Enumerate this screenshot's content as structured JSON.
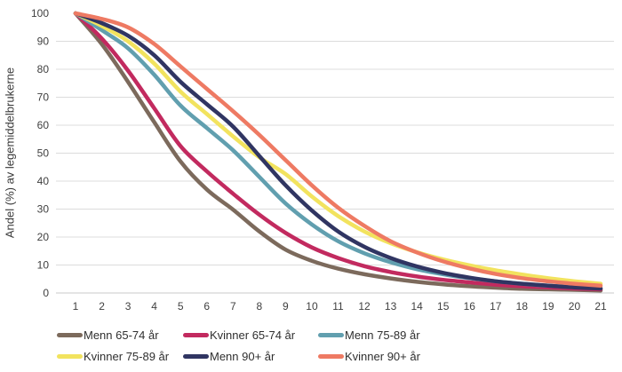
{
  "chart_data": {
    "type": "line",
    "title": "",
    "xlabel": "",
    "ylabel": "Andel (%) av legemiddelbrukerne",
    "x": [
      1,
      2,
      3,
      4,
      5,
      6,
      7,
      8,
      9,
      10,
      11,
      12,
      13,
      14,
      15,
      16,
      17,
      18,
      19,
      20,
      21
    ],
    "ylim": [
      0,
      100
    ],
    "yticks": [
      0,
      10,
      20,
      30,
      40,
      50,
      60,
      70,
      80,
      90,
      100
    ],
    "grid": "horizontal-only",
    "gridline_color": "#dcdcdc",
    "axis_line_color": "#c8c8c8",
    "legend_position": "bottom",
    "series": [
      {
        "name": "Menn 65-74 år",
        "color": "#7C6A5C",
        "values": [
          100,
          89,
          75.5,
          61,
          47,
          37,
          29.8,
          22,
          15.5,
          11.5,
          8.7,
          6.7,
          5.2,
          4.0,
          3.1,
          2.4,
          1.9,
          1.5,
          1.3,
          1.1,
          0.9
        ]
      },
      {
        "name": "Kvinner 65-74 år",
        "color": "#C22A5F",
        "values": [
          100,
          91,
          79.5,
          66,
          52.5,
          43.5,
          35.5,
          28,
          21.5,
          16.3,
          12.5,
          9.6,
          7.5,
          5.9,
          4.7,
          3.8,
          3.0,
          2.4,
          2.0,
          1.6,
          1.3
        ]
      },
      {
        "name": "Menn 75-89 år",
        "color": "#619FAF",
        "values": [
          100,
          94,
          87.5,
          78,
          67,
          59,
          51,
          41.5,
          32,
          24.5,
          18.5,
          14.2,
          11,
          8.5,
          6.7,
          5.3,
          4.2,
          3.3,
          2.6,
          2.1,
          1.7
        ]
      },
      {
        "name": "Kvinner 75-89 år",
        "color": "#F2E35E",
        "values": [
          100,
          95.5,
          90,
          82,
          72,
          64,
          56,
          48.5,
          42.5,
          34.5,
          27.5,
          22,
          17.8,
          14.6,
          12,
          9.9,
          8.1,
          6.6,
          5.3,
          4.2,
          3.3
        ]
      },
      {
        "name": "Menn 90+ år",
        "color": "#303562",
        "values": [
          100,
          96.5,
          92,
          85,
          75.5,
          67.5,
          59.5,
          49,
          38.5,
          29.5,
          22,
          16.5,
          12.5,
          9.5,
          7.2,
          5.5,
          4.2,
          3.3,
          2.6,
          2.0,
          1.6
        ]
      },
      {
        "name": "Kvinner 90+ år",
        "color": "#EE7A63",
        "values": [
          100,
          98,
          95,
          89,
          81,
          73,
          65,
          56.5,
          47.5,
          38.5,
          30.5,
          24,
          18.5,
          14.5,
          11.3,
          8.8,
          6.8,
          5.3,
          4.2,
          3.3,
          2.6
        ]
      }
    ],
    "draw_order": [
      0,
      1,
      2,
      3,
      4,
      5
    ]
  }
}
